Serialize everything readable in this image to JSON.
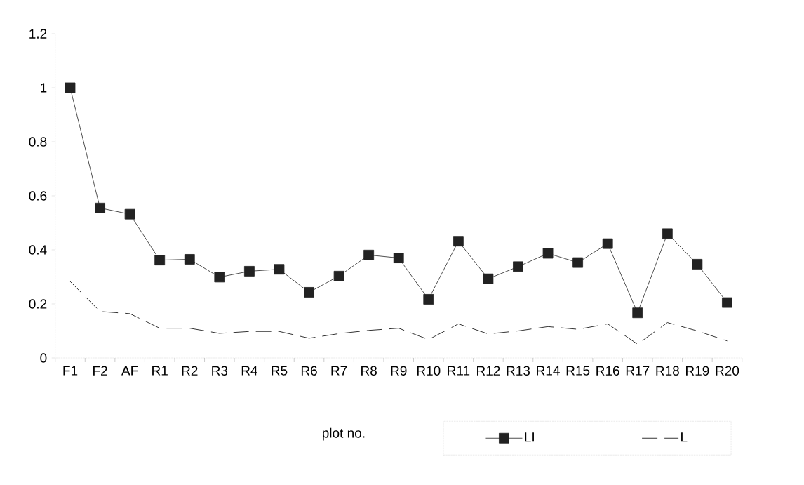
{
  "chart_data": {
    "type": "line",
    "xlabel": "plot no.",
    "categories": [
      "F1",
      "F2",
      "AF",
      "R1",
      "R2",
      "R3",
      "R4",
      "R5",
      "R6",
      "R7",
      "R8",
      "R9",
      "R10",
      "R11",
      "R12",
      "R13",
      "R14",
      "R15",
      "R16",
      "R17",
      "R18",
      "R19",
      "R20"
    ],
    "series": [
      {
        "name": "LI",
        "color": "#222222",
        "marker": "square",
        "line_style": "solid",
        "values": [
          1.0,
          0.555,
          0.532,
          0.362,
          0.365,
          0.299,
          0.321,
          0.328,
          0.243,
          0.303,
          0.381,
          0.37,
          0.217,
          0.432,
          0.293,
          0.338,
          0.387,
          0.353,
          0.423,
          0.167,
          0.46,
          0.347,
          0.205
        ]
      },
      {
        "name": "L",
        "color": "#000000",
        "marker": "none",
        "line_style": "dashed",
        "values": [
          0.283,
          0.172,
          0.164,
          0.11,
          0.11,
          0.091,
          0.098,
          0.098,
          0.073,
          0.09,
          0.102,
          0.11,
          0.068,
          0.126,
          0.089,
          0.1,
          0.116,
          0.106,
          0.126,
          0.051,
          0.131,
          0.1,
          0.063
        ]
      }
    ],
    "ylim": [
      0,
      1.2
    ],
    "yticks": [
      0,
      0.2,
      0.4,
      0.6,
      0.8,
      1,
      1.2
    ],
    "legend": "bottom right"
  }
}
